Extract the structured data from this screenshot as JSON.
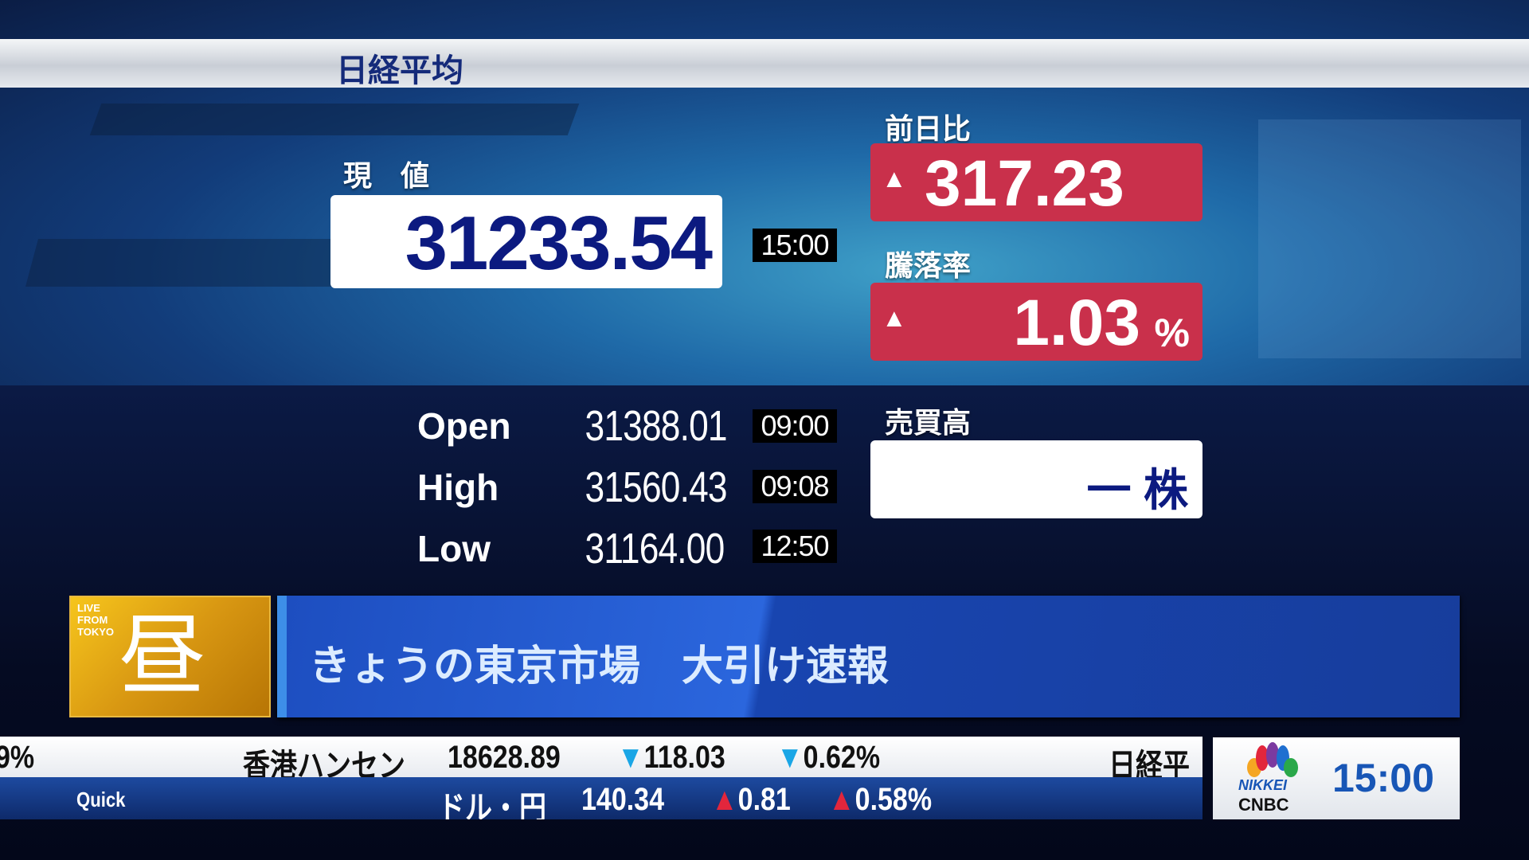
{
  "header": {
    "title": "日経平均"
  },
  "current": {
    "label": "現　値",
    "value": "31233.54",
    "time": "15:00"
  },
  "change": {
    "label": "前日比",
    "direction": "up",
    "value": "317.23"
  },
  "rate": {
    "label": "騰落率",
    "direction": "up",
    "value": "1.03",
    "unit": "%"
  },
  "ohl": [
    {
      "label": "Open",
      "value": "31388.01",
      "time": "09:00"
    },
    {
      "label": "High",
      "value": "31560.43",
      "time": "09:08"
    },
    {
      "label": "Low",
      "value": "31164.00",
      "time": "12:50"
    }
  ],
  "volume": {
    "label": "売買高",
    "value": "一 株"
  },
  "program": {
    "badge_text": "LIVE FROM TOKYO",
    "badge_kanji": "昼",
    "title": "きょうの東京市場　大引け速報"
  },
  "ticker_top": {
    "prev_tail": "9%",
    "name": "香港ハンセン",
    "value": "18628.89",
    "change": "▼118.03",
    "rate": "▼0.62%",
    "next_head": "日経平"
  },
  "ticker_bottom": {
    "source": "Quick",
    "name": "ドル・円",
    "value": "140.34",
    "change": "▲0.81",
    "rate": "▲0.58%"
  },
  "logo": {
    "line1": "NIKKEI",
    "line2": "CNBC",
    "clock": "15:00"
  },
  "colors": {
    "navy": "#0c1a80",
    "red": "#c9304b",
    "up": "#e2263c",
    "down": "#1aa6e6"
  }
}
